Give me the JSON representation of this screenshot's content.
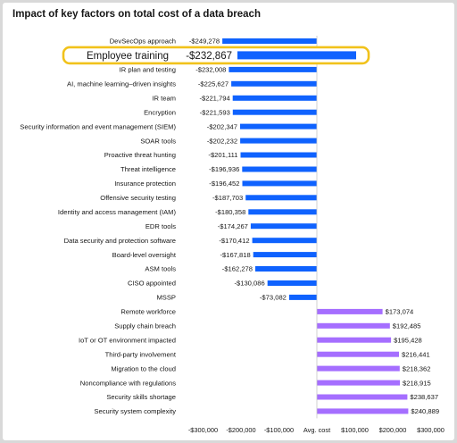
{
  "chart_data": {
    "type": "bar",
    "orientation": "horizontal",
    "title": "Impact of key factors on total cost of a data breach",
    "xlabel": "",
    "ylabel": "",
    "xlim": [
      -300000,
      300000
    ],
    "x_ticks": [
      {
        "label": "-$300,000",
        "value": -300000
      },
      {
        "label": "-$200,000",
        "value": -200000
      },
      {
        "label": "-$100,000",
        "value": -100000
      },
      {
        "label": "Avg. cost",
        "value": 0
      },
      {
        "label": "$100,000",
        "value": 100000
      },
      {
        "label": "$200,000",
        "value": 200000
      },
      {
        "label": "$300,000",
        "value": 300000
      }
    ],
    "grid": false,
    "colors": {
      "negative": "#0f62fe",
      "positive": "#a56eff",
      "highlight": "#f1c21b"
    },
    "bars": [
      {
        "category": "DevSecOps approach",
        "value": -249278,
        "label": "-$249,278"
      },
      {
        "category": "Employee training",
        "value": -232867,
        "label": "-$232,867",
        "highlight": true
      },
      {
        "category": "IR plan and testing",
        "value": -232008,
        "label": "-$232,008"
      },
      {
        "category": "AI, machine learning–driven insights",
        "value": -225627,
        "label": "-$225,627"
      },
      {
        "category": "IR team",
        "value": -221794,
        "label": "-$221,794"
      },
      {
        "category": "Encryption",
        "value": -221593,
        "label": "-$221,593"
      },
      {
        "category": "Security information and event management (SIEM)",
        "value": -202347,
        "label": "-$202,347"
      },
      {
        "category": "SOAR tools",
        "value": -202232,
        "label": "-$202,232"
      },
      {
        "category": "Proactive threat hunting",
        "value": -201111,
        "label": "-$201,111"
      },
      {
        "category": "Threat intelligence",
        "value": -196936,
        "label": "-$196,936"
      },
      {
        "category": "Insurance protection",
        "value": -196452,
        "label": "-$196,452"
      },
      {
        "category": "Offensive security testing",
        "value": -187703,
        "label": "-$187,703"
      },
      {
        "category": "Identity and access management (IAM)",
        "value": -180358,
        "label": "-$180,358"
      },
      {
        "category": "EDR tools",
        "value": -174267,
        "label": "-$174,267"
      },
      {
        "category": "Data security and protection software",
        "value": -170412,
        "label": "-$170,412"
      },
      {
        "category": "Board-level oversight",
        "value": -167818,
        "label": "-$167,818"
      },
      {
        "category": "ASM tools",
        "value": -162278,
        "label": "-$162,278"
      },
      {
        "category": "CISO appointed",
        "value": -130086,
        "label": "-$130,086"
      },
      {
        "category": "MSSP",
        "value": -73082,
        "label": "-$73,082"
      },
      {
        "category": "Remote workforce",
        "value": 173074,
        "label": "$173,074"
      },
      {
        "category": "Supply chain breach",
        "value": 192485,
        "label": "$192,485"
      },
      {
        "category": "IoT or OT environment impacted",
        "value": 195428,
        "label": "$195,428"
      },
      {
        "category": "Third-party involvement",
        "value": 216441,
        "label": "$216,441"
      },
      {
        "category": "Migration to the cloud",
        "value": 218362,
        "label": "$218,362"
      },
      {
        "category": "Noncompliance with regulations",
        "value": 218915,
        "label": "$218,915"
      },
      {
        "category": "Security skills shortage",
        "value": 238637,
        "label": "$238,637"
      },
      {
        "category": "Security system complexity",
        "value": 240889,
        "label": "$240,889"
      }
    ]
  }
}
